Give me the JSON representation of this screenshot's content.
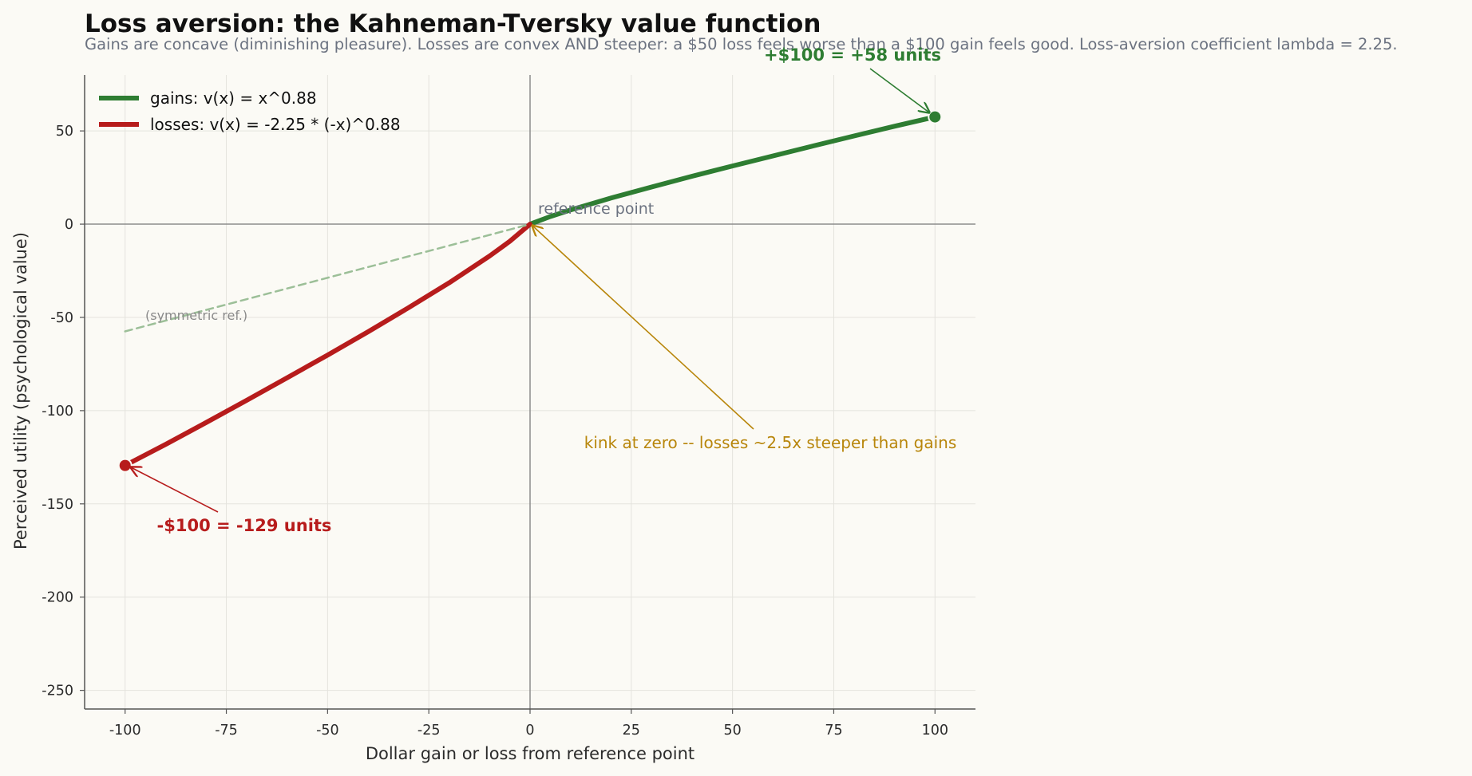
{
  "chart_data": {
    "type": "line",
    "title": "Loss aversion: the Kahneman-Tversky value function",
    "subtitle": "Gains are concave (diminishing pleasure). Losses are convex AND steeper: a $50 loss feels worse than a $100 gain feels good. Loss-aversion coefficient lambda = 2.25.",
    "xlabel": "Dollar gain or loss from reference point",
    "ylabel": "Perceived utility (psychological value)",
    "xlim": [
      -110,
      110
    ],
    "ylim": [
      -260,
      80
    ],
    "x_ticks": [
      -100,
      -75,
      -50,
      -25,
      0,
      25,
      50,
      75,
      100
    ],
    "y_ticks": [
      50,
      0,
      -50,
      -100,
      -150,
      -200,
      -250
    ],
    "x_tick_labels": [
      "-100",
      "-75",
      "-50",
      "-25",
      "0",
      "25",
      "50",
      "75",
      "100"
    ],
    "y_tick_labels": [
      "50",
      "0",
      "-50",
      "-100",
      "-150",
      "-200",
      "-250"
    ],
    "grid": true,
    "legend_position": "top-left",
    "alpha": 0.88,
    "lambda": 2.25,
    "series": [
      {
        "name": "gains: v(x) = x^0.88",
        "color": "#2e7d32",
        "style": "solid",
        "x": [
          0,
          5,
          10,
          20,
          30,
          40,
          50,
          60,
          70,
          80,
          90,
          100
        ],
        "y": [
          0,
          4.1,
          7.6,
          14.0,
          19.9,
          25.7,
          31.2,
          36.6,
          42.0,
          47.3,
          52.5,
          57.5
        ]
      },
      {
        "name": "losses: v(x) = -2.25 * (-x)^0.88",
        "color": "#b71c1c",
        "style": "solid",
        "x": [
          -100,
          -90,
          -80,
          -70,
          -60,
          -50,
          -40,
          -30,
          -20,
          -10,
          -5,
          0
        ],
        "y": [
          -129.4,
          -118.1,
          -106.4,
          -94.5,
          -82.4,
          -70.2,
          -57.7,
          -44.8,
          -31.5,
          -17.1,
          -9.2,
          0
        ]
      },
      {
        "name": "",
        "color": "#9cbf98",
        "style": "dashed",
        "x": [
          -100,
          0
        ],
        "y": [
          -57.5,
          0
        ]
      }
    ],
    "markers": [
      {
        "x": 100,
        "y": 57.5,
        "color": "#2e7d32"
      },
      {
        "x": -100,
        "y": -129.4,
        "color": "#b71c1c"
      }
    ],
    "annotations": {
      "gain_point": {
        "text": "+$100 = +58 units",
        "color": "#2e7d32"
      },
      "loss_point": {
        "text": "-$100 = -129 units",
        "color": "#b71c1c"
      },
      "kink": {
        "text": "kink at zero -- losses ~2.5x steeper than gains",
        "color": "#b8860b"
      },
      "reference": {
        "text": "reference point",
        "color": "#6b7280"
      },
      "symmetric": {
        "text": "(symmetric ref.)",
        "color": "#8a8a8a"
      }
    },
    "colors": {
      "background": "#fbfaf5",
      "grid": "#e4e3dd",
      "axis": "#555555",
      "zero_line": "#8c8c8c"
    }
  }
}
